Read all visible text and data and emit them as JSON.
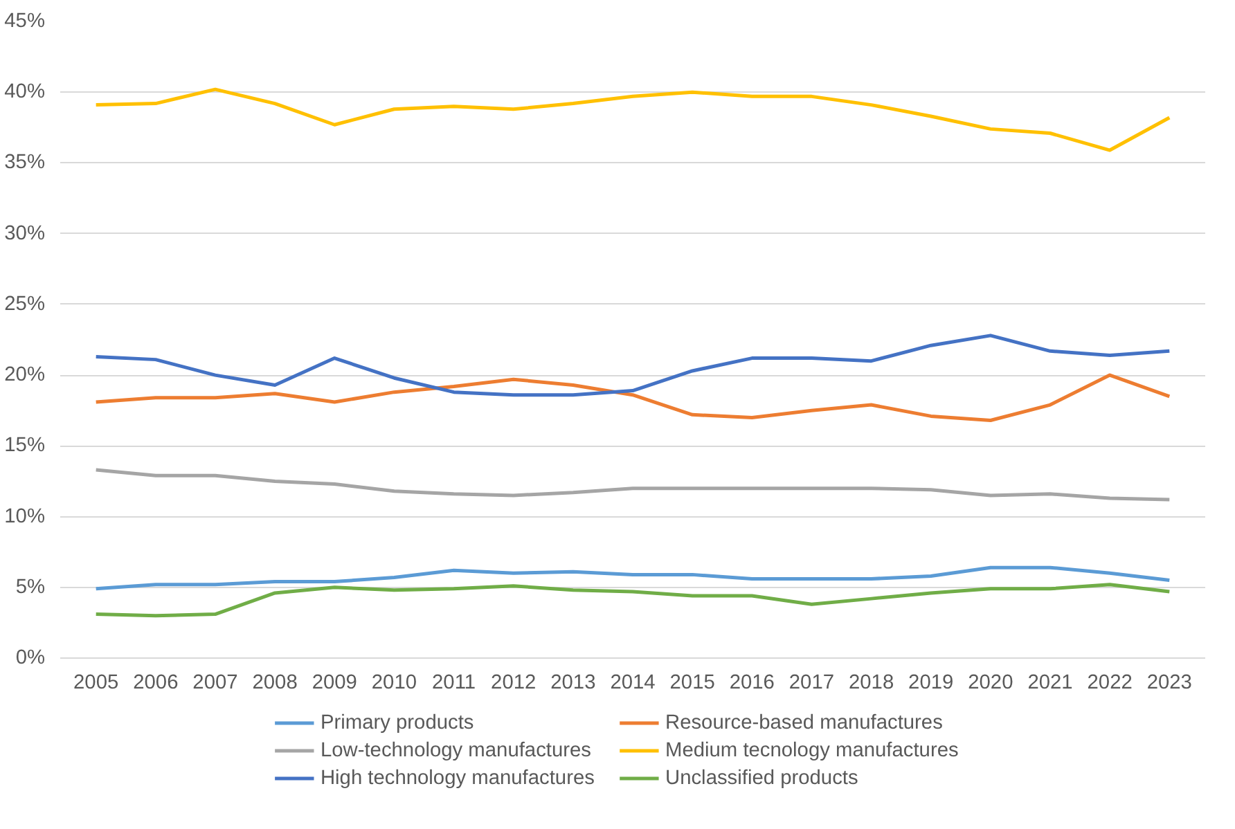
{
  "chart_data": {
    "type": "line",
    "categories": [
      "2005",
      "2006",
      "2007",
      "2008",
      "2009",
      "2010",
      "2011",
      "2012",
      "2013",
      "2014",
      "2015",
      "2016",
      "2017",
      "2018",
      "2019",
      "2020",
      "2021",
      "2022",
      "2023"
    ],
    "series": [
      {
        "name": "Primary products",
        "color": "#5b9bd5",
        "values": [
          4.9,
          5.2,
          5.2,
          5.4,
          5.4,
          5.7,
          6.2,
          6.0,
          6.1,
          5.9,
          5.9,
          5.6,
          5.6,
          5.6,
          5.8,
          6.4,
          6.4,
          6.0,
          5.5
        ]
      },
      {
        "name": "Resource-based manufactures",
        "color": "#ed7d31",
        "values": [
          18.1,
          18.4,
          18.4,
          18.7,
          18.1,
          18.8,
          19.2,
          19.7,
          19.3,
          18.6,
          17.2,
          17.0,
          17.5,
          17.9,
          17.1,
          16.8,
          17.9,
          20.0,
          18.5
        ]
      },
      {
        "name": "Low-technology manufactures",
        "color": "#a5a5a5",
        "values": [
          13.3,
          12.9,
          12.9,
          12.5,
          12.3,
          11.8,
          11.6,
          11.5,
          11.7,
          12.0,
          12.0,
          12.0,
          12.0,
          12.0,
          11.9,
          11.5,
          11.6,
          11.3,
          11.2
        ]
      },
      {
        "name": "Medium tecnology manufactures",
        "color": "#ffc000",
        "values": [
          39.1,
          39.2,
          40.2,
          39.2,
          37.7,
          38.8,
          39.0,
          38.8,
          39.2,
          39.7,
          40.0,
          39.7,
          39.7,
          39.1,
          38.3,
          37.4,
          37.1,
          35.9,
          38.2
        ]
      },
      {
        "name": "High technology manufactures",
        "color": "#4472c4",
        "values": [
          21.3,
          21.1,
          20.0,
          19.3,
          21.2,
          19.8,
          18.8,
          18.6,
          18.6,
          18.9,
          20.3,
          21.2,
          21.2,
          21.0,
          22.1,
          22.8,
          21.7,
          21.4,
          21.7
        ]
      },
      {
        "name": "Unclassified products",
        "color": "#70ad47",
        "values": [
          3.1,
          3.0,
          3.1,
          4.6,
          5.0,
          4.8,
          4.9,
          5.1,
          4.8,
          4.7,
          4.4,
          4.4,
          3.8,
          4.2,
          4.6,
          4.9,
          4.9,
          5.2,
          4.7
        ]
      }
    ],
    "ylim": [
      0,
      45
    ],
    "yticks": [
      {
        "value": 0,
        "label": "0%"
      },
      {
        "value": 5,
        "label": "5%"
      },
      {
        "value": 10,
        "label": "10%"
      },
      {
        "value": 15,
        "label": "15%"
      },
      {
        "value": 20,
        "label": "20%"
      },
      {
        "value": 25,
        "label": "25%"
      },
      {
        "value": 30,
        "label": "30%"
      },
      {
        "value": 35,
        "label": "35%"
      },
      {
        "value": 40,
        "label": "40%"
      },
      {
        "value": 45,
        "label": "45%"
      }
    ],
    "grid": "y",
    "legend": "bottom",
    "marker": "none",
    "line_style": "solid"
  }
}
